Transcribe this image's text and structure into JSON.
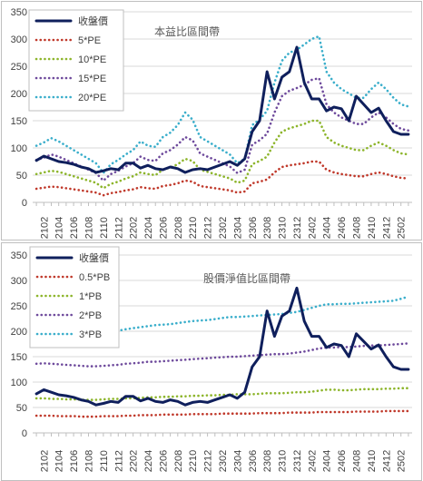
{
  "chart_data": [
    {
      "type": "line",
      "title": "本益比區間帶",
      "xlabel": "",
      "ylabel": "",
      "ylim": [
        0,
        350
      ],
      "yticks": [
        0,
        50,
        100,
        150,
        200,
        250,
        300,
        350
      ],
      "grid": true,
      "legend_position": "top-left",
      "x": [
        "2101",
        "2102",
        "2103",
        "2104",
        "2105",
        "2106",
        "2107",
        "2108",
        "2109",
        "2110",
        "2111",
        "2112",
        "2201",
        "2202",
        "2203",
        "2204",
        "2205",
        "2206",
        "2207",
        "2208",
        "2209",
        "2210",
        "2211",
        "2212",
        "2301",
        "2302",
        "2303",
        "2304",
        "2305",
        "2306",
        "2307",
        "2308",
        "2309",
        "2310",
        "2311",
        "2312",
        "2401",
        "2402",
        "2403",
        "2404",
        "2405",
        "2406",
        "2407",
        "2408",
        "2409",
        "2410",
        "2411",
        "2412",
        "2501",
        "2502",
        "2503"
      ],
      "x_tick_labels": [
        "2102",
        "2104",
        "2106",
        "2108",
        "2110",
        "2112",
        "2202",
        "2204",
        "2206",
        "2208",
        "2210",
        "2212",
        "2302",
        "2304",
        "2306",
        "2308",
        "2310",
        "2312",
        "2402",
        "2404",
        "2406",
        "2408",
        "2410",
        "2412",
        "2502"
      ],
      "series": [
        {
          "name": "收盤價",
          "color": "#0f1f5c",
          "style": "solid",
          "values": [
            77,
            85,
            80,
            75,
            73,
            70,
            65,
            62,
            55,
            58,
            62,
            60,
            72,
            72,
            63,
            68,
            62,
            60,
            65,
            62,
            55,
            60,
            62,
            60,
            65,
            70,
            75,
            68,
            80,
            130,
            150,
            240,
            190,
            230,
            240,
            285,
            220,
            190,
            190,
            168,
            175,
            172,
            150,
            195,
            180,
            165,
            173,
            150,
            130,
            125,
            125
          ]
        },
        {
          "name": "5*PE",
          "color": "#c0392b",
          "style": "dotted",
          "values": [
            25,
            27,
            29,
            28,
            26,
            24,
            22,
            20,
            18,
            13,
            17,
            19,
            22,
            24,
            28,
            26,
            25,
            30,
            32,
            35,
            40,
            38,
            30,
            28,
            26,
            24,
            22,
            18,
            20,
            35,
            38,
            42,
            55,
            65,
            68,
            70,
            72,
            75,
            75,
            60,
            55,
            52,
            50,
            48,
            48,
            52,
            55,
            52,
            48,
            45,
            44
          ]
        },
        {
          "name": "10*PE",
          "color": "#8db52b",
          "style": "dotted",
          "values": [
            52,
            55,
            58,
            56,
            52,
            48,
            44,
            40,
            36,
            26,
            34,
            38,
            44,
            48,
            55,
            52,
            50,
            60,
            64,
            70,
            80,
            76,
            60,
            56,
            52,
            48,
            44,
            36,
            40,
            70,
            76,
            84,
            110,
            130,
            136,
            140,
            144,
            150,
            150,
            120,
            110,
            104,
            100,
            96,
            96,
            104,
            110,
            104,
            96,
            90,
            88
          ]
        },
        {
          "name": "15*PE",
          "color": "#6e4a9c",
          "style": "dotted",
          "values": [
            78,
            82,
            88,
            84,
            78,
            72,
            66,
            60,
            54,
            40,
            52,
            58,
            66,
            72,
            84,
            78,
            76,
            90,
            96,
            106,
            120,
            114,
            90,
            84,
            78,
            72,
            66,
            54,
            60,
            106,
            114,
            126,
            165,
            195,
            205,
            210,
            216,
            225,
            228,
            180,
            165,
            156,
            150,
            144,
            144,
            156,
            165,
            156,
            144,
            135,
            132
          ]
        },
        {
          "name": "20*PE",
          "color": "#3aaecb",
          "style": "dotted",
          "values": [
            104,
            110,
            118,
            112,
            104,
            96,
            88,
            80,
            72,
            54,
            70,
            78,
            88,
            96,
            112,
            104,
            102,
            120,
            128,
            142,
            165,
            152,
            120,
            112,
            104,
            96,
            88,
            72,
            80,
            142,
            152,
            168,
            220,
            260,
            275,
            280,
            290,
            300,
            305,
            240,
            220,
            208,
            200,
            192,
            192,
            208,
            220,
            208,
            192,
            180,
            176
          ]
        }
      ]
    },
    {
      "type": "line",
      "title": "股價淨值比區間帶",
      "xlabel": "",
      "ylabel": "",
      "ylim": [
        0,
        350
      ],
      "yticks": [
        0,
        50,
        100,
        150,
        200,
        250,
        300,
        350
      ],
      "grid": true,
      "legend_position": "top-left",
      "x": [
        "2101",
        "2102",
        "2103",
        "2104",
        "2105",
        "2106",
        "2107",
        "2108",
        "2109",
        "2110",
        "2111",
        "2112",
        "2201",
        "2202",
        "2203",
        "2204",
        "2205",
        "2206",
        "2207",
        "2208",
        "2209",
        "2210",
        "2211",
        "2212",
        "2301",
        "2302",
        "2303",
        "2304",
        "2305",
        "2306",
        "2307",
        "2308",
        "2309",
        "2310",
        "2311",
        "2312",
        "2401",
        "2402",
        "2403",
        "2404",
        "2405",
        "2406",
        "2407",
        "2408",
        "2409",
        "2410",
        "2411",
        "2412",
        "2501",
        "2502",
        "2503"
      ],
      "x_tick_labels": [
        "2102",
        "2104",
        "2106",
        "2108",
        "2110",
        "2112",
        "2202",
        "2204",
        "2206",
        "2208",
        "2210",
        "2212",
        "2302",
        "2304",
        "2306",
        "2308",
        "2310",
        "2312",
        "2402",
        "2404",
        "2406",
        "2408",
        "2410",
        "2412",
        "2502"
      ],
      "series": [
        {
          "name": "收盤價",
          "color": "#0f1f5c",
          "style": "solid",
          "values": [
            77,
            85,
            80,
            75,
            73,
            70,
            65,
            62,
            55,
            58,
            62,
            60,
            72,
            72,
            63,
            68,
            62,
            60,
            65,
            62,
            55,
            60,
            62,
            60,
            65,
            70,
            75,
            68,
            80,
            130,
            150,
            240,
            190,
            230,
            240,
            285,
            220,
            190,
            190,
            168,
            175,
            172,
            150,
            195,
            180,
            165,
            173,
            150,
            130,
            125,
            125
          ]
        },
        {
          "name": "0.5*PB",
          "color": "#c0392b",
          "style": "dotted",
          "values": [
            34,
            34,
            34,
            33,
            33,
            33,
            32,
            32,
            32,
            33,
            33,
            33,
            34,
            34,
            35,
            35,
            35,
            36,
            36,
            36,
            36,
            37,
            37,
            37,
            37,
            38,
            38,
            38,
            38,
            38,
            39,
            39,
            39,
            39,
            40,
            40,
            40,
            40,
            41,
            41,
            41,
            41,
            41,
            42,
            42,
            42,
            42,
            43,
            43,
            43,
            43
          ]
        },
        {
          "name": "1*PB",
          "color": "#8db52b",
          "style": "dotted",
          "values": [
            68,
            68,
            67,
            67,
            66,
            66,
            65,
            65,
            65,
            66,
            67,
            67,
            68,
            68,
            69,
            70,
            70,
            71,
            71,
            72,
            72,
            73,
            73,
            74,
            74,
            75,
            75,
            76,
            76,
            76,
            77,
            78,
            78,
            78,
            79,
            80,
            80,
            81,
            83,
            85,
            85,
            84,
            84,
            85,
            86,
            86,
            86,
            87,
            87,
            88,
            88
          ]
        },
        {
          "name": "2*PB",
          "color": "#6e4a9c",
          "style": "dotted",
          "values": [
            136,
            137,
            136,
            135,
            134,
            133,
            132,
            131,
            131,
            132,
            133,
            134,
            136,
            137,
            138,
            140,
            140,
            141,
            142,
            143,
            144,
            145,
            146,
            147,
            148,
            149,
            150,
            150,
            151,
            152,
            153,
            154,
            155,
            155,
            156,
            158,
            160,
            163,
            166,
            168,
            168,
            169,
            169,
            170,
            171,
            172,
            172,
            173,
            174,
            175,
            176
          ]
        },
        {
          "name": "3*PB",
          "color": "#3aaecb",
          "style": "dotted",
          "values": [
            205,
            205,
            203,
            202,
            200,
            199,
            198,
            197,
            197,
            198,
            200,
            201,
            204,
            206,
            208,
            210,
            212,
            213,
            214,
            216,
            218,
            220,
            221,
            222,
            224,
            226,
            228,
            228,
            229,
            230,
            231,
            232,
            233,
            234,
            236,
            238,
            242,
            246,
            250,
            253,
            253,
            254,
            254,
            255,
            256,
            257,
            258,
            259,
            260,
            264,
            268
          ]
        }
      ]
    }
  ]
}
